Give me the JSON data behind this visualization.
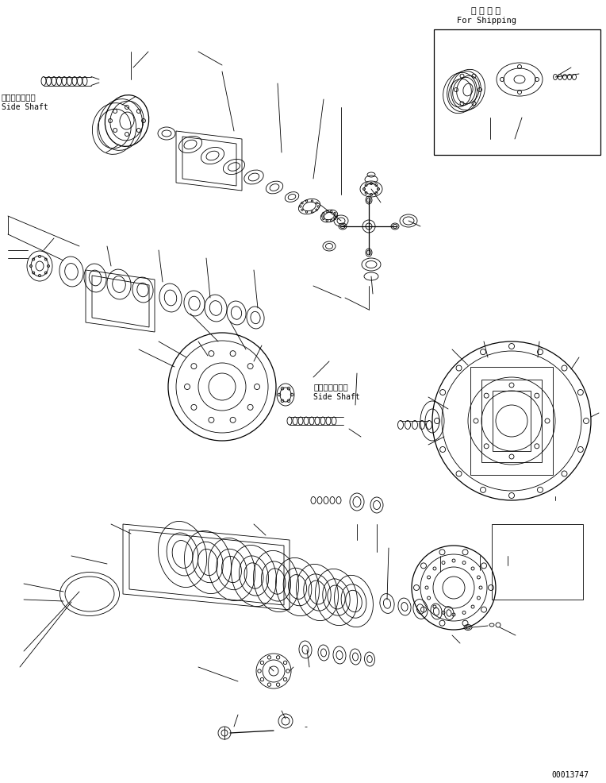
{
  "bg_color": "#ffffff",
  "line_color": "#000000",
  "fig_width": 7.64,
  "fig_height": 9.86,
  "dpi": 100,
  "title_jp": "運 携 部 品",
  "title_en": "For Shipping",
  "label1_jp": "サイドシャフト",
  "label1_en": "Side Shaft",
  "label2_jp": "サイドシャフト",
  "label2_en": "Side Shaft",
  "doc_number": "00013747"
}
